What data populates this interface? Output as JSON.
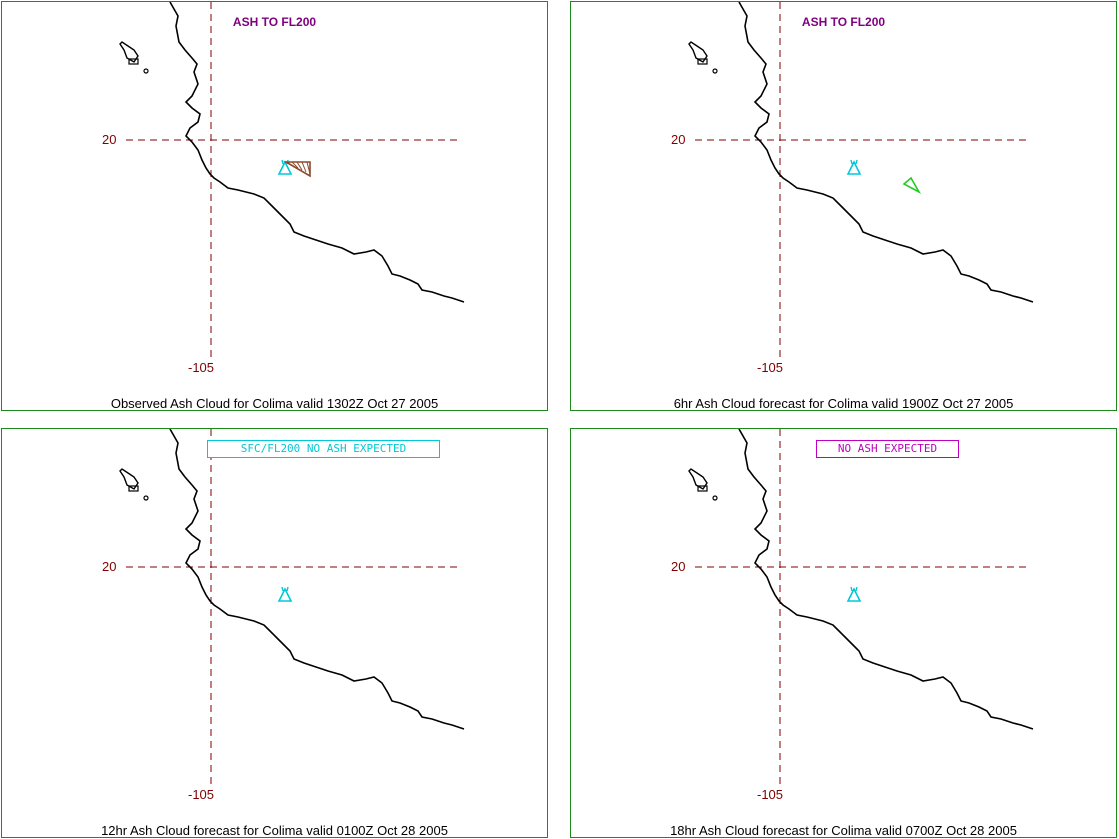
{
  "colors": {
    "panel_border": "#1a8a1a",
    "gridline": "#800000",
    "coastline": "#000000",
    "volcano_symbol": "#00c8d8",
    "observed_ash_polygon": "#8b4a2b",
    "forecast_ash_polygon": "#22cc22"
  },
  "panels": [
    {
      "header": "ASH TO FL200",
      "header_color": "#800080",
      "header_style": "plain",
      "lat_label": "20",
      "lon_label": "-105",
      "caption": "Observed Ash Cloud for Colima valid 1302Z Oct 27 2005",
      "ash_area": "observed"
    },
    {
      "header": "ASH TO FL200",
      "header_color": "#800080",
      "header_style": "plain",
      "lat_label": "20",
      "lon_label": "-105",
      "caption": "6hr Ash Cloud forecast for Colima valid 1900Z Oct 27 2005",
      "ash_area": "forecast"
    },
    {
      "header": "SFC/FL200 NO ASH EXPECTED",
      "header_color": "#00c8d8",
      "header_style": "boxed",
      "lat_label": "20",
      "lon_label": "-105",
      "caption": "12hr Ash Cloud forecast for Colima valid 0100Z Oct 28 2005",
      "ash_area": "none"
    },
    {
      "header": "NO ASH EXPECTED",
      "header_color": "#c000c0",
      "header_style": "boxed",
      "lat_label": "20",
      "lon_label": "-105",
      "caption": "18hr Ash Cloud forecast for Colima valid 0700Z Oct 28 2005",
      "ash_area": "none"
    }
  ]
}
